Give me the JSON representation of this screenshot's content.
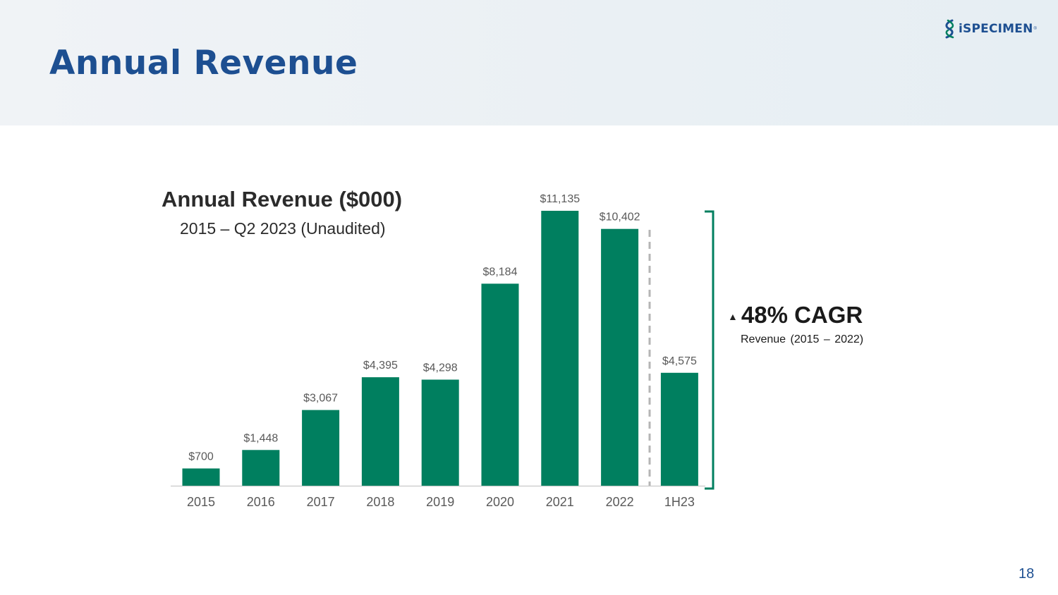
{
  "slide": {
    "title": "Annual Revenue",
    "page_number": "18",
    "logo": {
      "text": "iSPECIMEN",
      "mark": "®",
      "icon": "dna-helix-icon"
    }
  },
  "colors": {
    "bar": "#007f5f",
    "title": "#1d4f91",
    "bracket": "#007f5f",
    "divider": "#b5b5b5",
    "axis": "#d0d0d0",
    "label": "#595959"
  },
  "chart_data": {
    "type": "bar",
    "title": "Annual Revenue ($000)",
    "subtitle": "2015 – Q2 2023 (Unaudited)",
    "categories": [
      "2015",
      "2016",
      "2017",
      "2018",
      "2019",
      "2020",
      "2021",
      "2022",
      "1H23"
    ],
    "values": [
      700,
      1448,
      3067,
      4395,
      4298,
      8184,
      11135,
      10402,
      4575
    ],
    "value_labels": [
      "$700",
      "$1,448",
      "$3,067",
      "$4,395",
      "$4,298",
      "$8,184",
      "$11,135",
      "$10,402",
      "$4,575"
    ],
    "ylim": [
      0,
      11135
    ],
    "xlabel": "",
    "ylabel": "",
    "grid": false,
    "legend": "none",
    "annotations": {
      "cagr": "48% CAGR",
      "cagr_caption": "Revenue (2015 – 2022)",
      "cagr_arrow": "▲"
    }
  }
}
